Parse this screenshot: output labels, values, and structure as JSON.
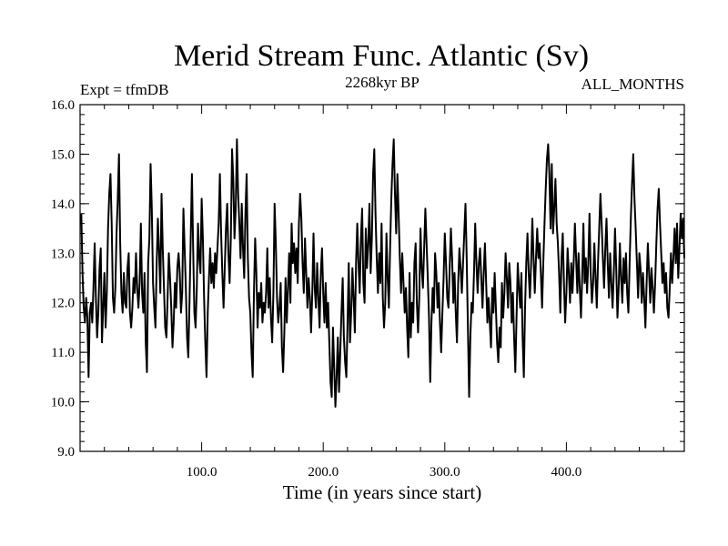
{
  "chart_data": {
    "type": "line",
    "title": "Merid Stream Func. Atlantic (Sv)",
    "left_label": "Expt = tfmDB",
    "center_label": "2268kyr BP",
    "right_label": "ALL_MONTHS",
    "xlabel": "Time (in years since start)",
    "ylabel": "",
    "xlim": [
      0,
      497
    ],
    "ylim": [
      9.0,
      16.0
    ],
    "x_ticks": [
      100,
      200,
      300,
      400
    ],
    "x_tick_labels": [
      "100.0",
      "200.0",
      "300.0",
      "400.0"
    ],
    "y_ticks": [
      9,
      10,
      11,
      12,
      13,
      14,
      15,
      16
    ],
    "y_tick_labels": [
      "9.0",
      "10.0",
      "11.0",
      "12.0",
      "13.0",
      "14.0",
      "15.0",
      "16.0"
    ],
    "grid": false,
    "series": [
      {
        "name": "Merid Stream Func. Atlantic",
        "x_start": 1,
        "x_step": 1,
        "values": [
          13.8,
          12.6,
          11.9,
          11.6,
          12.1,
          11.7,
          10.5,
          11.8,
          12.0,
          11.6,
          12.3,
          13.2,
          12.1,
          11.3,
          11.8,
          12.7,
          13.1,
          11.2,
          11.9,
          12.6,
          11.5,
          12.2,
          13.5,
          14.2,
          14.6,
          13.6,
          12.1,
          11.8,
          12.3,
          13.4,
          14.1,
          15.0,
          13.2,
          12.2,
          11.8,
          12.6,
          12.0,
          11.9,
          12.7,
          13.0,
          11.8,
          11.5,
          11.9,
          12.5,
          12.2,
          13.0,
          12.3,
          11.9,
          12.4,
          13.6,
          12.2,
          11.8,
          12.6,
          11.2,
          10.6,
          12.8,
          13.3,
          14.8,
          13.9,
          12.4,
          11.9,
          11.5,
          12.8,
          13.7,
          13.0,
          12.2,
          14.2,
          13.1,
          12.3,
          11.5,
          11.3,
          12.1,
          13.0,
          12.5,
          11.9,
          11.1,
          11.6,
          12.4,
          11.9,
          12.7,
          13.0,
          12.6,
          11.8,
          12.2,
          13.9,
          13.1,
          12.3,
          11.3,
          10.9,
          12.0,
          13.3,
          14.6,
          13.1,
          11.8,
          11.5,
          12.3,
          13.6,
          12.9,
          12.6,
          14.1,
          13.3,
          12.1,
          11.2,
          10.5,
          11.8,
          12.5,
          13.1,
          12.4,
          12.8,
          12.3,
          13.0,
          12.6,
          13.1,
          13.6,
          14.6,
          13.4,
          12.6,
          11.9,
          12.7,
          13.5,
          14.0,
          13.0,
          12.4,
          13.3,
          15.1,
          14.5,
          13.3,
          13.9,
          15.3,
          14.2,
          13.6,
          12.9,
          14.0,
          13.1,
          12.5,
          13.8,
          14.6,
          12.9,
          12.1,
          11.8,
          11.0,
          10.5,
          12.2,
          13.3,
          12.6,
          11.5,
          12.2,
          11.9,
          12.4,
          11.6,
          12.0,
          11.8,
          12.2,
          13.1,
          11.9,
          12.5,
          11.7,
          11.2,
          12.2,
          14.0,
          13.2,
          12.1,
          11.6,
          11.9,
          12.4,
          11.1,
          10.6,
          11.4,
          12.5,
          11.6,
          12.3,
          13.0,
          12.0,
          13.6,
          12.8,
          13.2,
          12.6,
          13.1,
          12.4,
          13.6,
          14.2,
          13.7,
          12.8,
          12.2,
          13.3,
          12.6,
          11.9,
          12.5,
          12.1,
          11.4,
          12.2,
          13.4,
          12.3,
          11.9,
          12.8,
          12.1,
          11.5,
          12.6,
          13.1,
          12.2,
          11.6,
          12.4,
          11.5,
          12.0,
          11.2,
          10.4,
          10.1,
          11.5,
          10.7,
          9.9,
          10.5,
          11.3,
          10.2,
          11.0,
          11.8,
          12.5,
          11.3,
          10.8,
          10.5,
          11.6,
          12.8,
          11.2,
          11.8,
          12.7,
          12.1,
          11.4,
          12.8,
          13.6,
          12.8,
          12.2,
          13.3,
          13.9,
          12.4,
          12.0,
          13.5,
          12.7,
          13.2,
          14.0,
          12.6,
          13.3,
          14.6,
          15.1,
          13.8,
          12.9,
          12.2,
          13.0,
          12.4,
          13.6,
          12.1,
          11.5,
          12.0,
          13.4,
          12.5,
          11.9,
          13.1,
          14.1,
          14.8,
          15.3,
          14.2,
          13.4,
          14.6,
          13.8,
          12.9,
          12.2,
          13.0,
          12.4,
          11.8,
          12.3,
          11.5,
          10.9,
          12.6,
          11.3,
          12.0,
          11.6,
          12.8,
          13.2,
          12.0,
          11.4,
          12.1,
          13.5,
          12.7,
          12.3,
          13.1,
          13.9,
          13.2,
          12.5,
          11.7,
          10.4,
          11.6,
          12.3,
          11.8,
          13.0,
          12.6,
          11.9,
          12.4,
          11.6,
          11.0,
          11.8,
          12.5,
          13.4,
          12.8,
          12.1,
          11.9,
          12.7,
          13.5,
          12.9,
          12.0,
          12.6,
          11.8,
          11.2,
          12.4,
          13.1,
          12.7,
          12.2,
          12.8,
          13.4,
          14.0,
          12.9,
          11.5,
          10.1,
          11.3,
          12.0,
          11.8,
          12.6,
          13.6,
          12.8,
          12.2,
          12.8,
          13.1,
          12.5,
          11.9,
          12.6,
          13.2,
          12.4,
          11.6,
          12.1,
          11.6,
          11.1,
          12.3,
          11.8,
          12.6,
          11.9,
          11.2,
          10.8,
          11.5,
          11.1,
          12.4,
          11.7,
          12.2,
          13.0,
          12.5,
          11.9,
          12.8,
          12.4,
          11.6,
          12.2,
          11.3,
          10.6,
          11.7,
          12.8,
          12.3,
          11.9,
          12.6,
          11.3,
          10.5,
          11.9,
          12.8,
          13.4,
          12.6,
          12.1,
          12.8,
          13.7,
          12.9,
          12.2,
          12.9,
          13.5,
          12.9,
          13.2,
          12.6,
          11.9,
          12.8,
          13.6,
          14.3,
          14.9,
          15.2,
          14.6,
          13.5,
          14.8,
          13.4,
          13.9,
          14.5,
          13.6,
          13.2,
          12.6,
          11.8,
          12.9,
          13.4,
          12.4,
          11.6,
          12.2,
          13.1,
          12.6,
          12.0,
          12.8,
          12.2,
          12.8,
          13.6,
          12.9,
          12.2,
          13.0,
          12.3,
          11.7,
          12.5,
          13.6,
          12.4,
          12.9,
          12.2,
          12.8,
          13.8,
          12.6,
          12.0,
          12.4,
          13.2,
          12.5,
          11.9,
          12.8,
          13.5,
          14.2,
          13.6,
          12.9,
          12.3,
          13.1,
          13.7,
          12.8,
          12.1,
          13.0,
          12.4,
          11.9,
          12.6,
          13.5,
          12.7,
          11.7,
          12.3,
          13.2,
          12.5,
          12.0,
          12.9,
          12.4,
          13.0,
          12.2,
          11.8,
          12.8,
          13.7,
          14.4,
          15.0,
          14.1,
          13.5,
          12.8,
          12.1,
          13.0,
          12.7,
          12.0,
          12.6,
          12.1,
          11.5,
          12.4,
          13.2,
          12.6,
          12.0,
          12.7,
          12.3,
          11.8,
          12.4,
          13.2,
          13.9,
          14.3,
          13.6,
          13.0,
          12.4,
          12.8,
          12.2,
          12.6,
          11.9,
          11.7,
          12.3,
          13.0,
          12.4,
          12.9,
          13.5,
          12.8,
          13.6,
          12.5,
          13.1,
          13.8,
          13.3,
          13.7,
          12.9
        ]
      }
    ]
  }
}
